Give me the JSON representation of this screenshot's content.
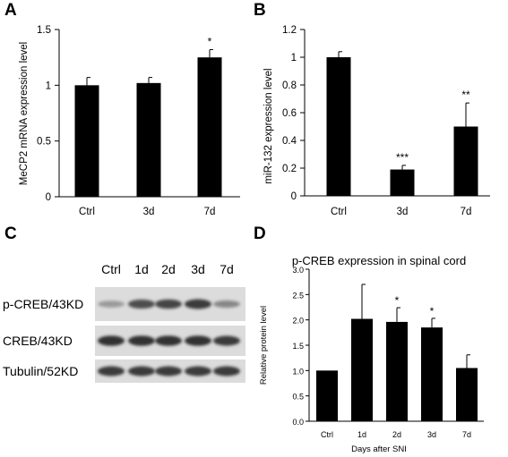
{
  "chart_data": [
    {
      "id": "A",
      "panel_label": "A",
      "type": "bar",
      "title": "",
      "xlabel": "",
      "ylabel": "MeCP2 mRNA expression level",
      "categories": [
        "Ctrl",
        "3d",
        "7d"
      ],
      "values": [
        1.0,
        1.02,
        1.25
      ],
      "errors": [
        0.07,
        0.05,
        0.07
      ],
      "significance": [
        "",
        "",
        "*"
      ],
      "ylim": [
        0,
        1.5
      ],
      "yticks": [
        0,
        0.5,
        1,
        1.5
      ],
      "ytick_labels": [
        "0",
        "0.5",
        "1",
        "1.5"
      ],
      "grid": false,
      "legend": "none",
      "bar_color": "#000000"
    },
    {
      "id": "B",
      "panel_label": "B",
      "type": "bar",
      "title": "",
      "xlabel": "",
      "ylabel": "miR-132 expression level",
      "categories": [
        "Ctrl",
        "3d",
        "7d"
      ],
      "values": [
        1.0,
        0.19,
        0.5
      ],
      "errors": [
        0.04,
        0.03,
        0.17
      ],
      "significance": [
        "",
        "***",
        "**"
      ],
      "ylim": [
        0,
        1.2
      ],
      "yticks": [
        0,
        0.2,
        0.4,
        0.6,
        0.8,
        1,
        1.2
      ],
      "ytick_labels": [
        "0",
        "0.2",
        "0.4",
        "0.6",
        "0.8",
        "1",
        "1.2"
      ],
      "grid": false,
      "legend": "none",
      "bar_color": "#000000"
    },
    {
      "id": "D",
      "panel_label": "D",
      "type": "bar",
      "title": "p-CREB expression in spinal cord",
      "xlabel": "Days after SNI",
      "ylabel": "Relative protein level",
      "categories": [
        "Ctrl",
        "1d",
        "2d",
        "3d",
        "7d"
      ],
      "values": [
        1.0,
        2.02,
        1.96,
        1.85,
        1.05
      ],
      "errors": [
        0.0,
        0.68,
        0.28,
        0.18,
        0.26
      ],
      "significance": [
        "",
        "",
        "*",
        "*",
        ""
      ],
      "ylim": [
        0,
        3.0
      ],
      "yticks": [
        0,
        0.5,
        1.0,
        1.5,
        2.0,
        2.5,
        3.0
      ],
      "ytick_labels": [
        "0.0",
        "0.5",
        "1.0",
        "1.5",
        "2.0",
        "2.5",
        "3.0"
      ],
      "grid": false,
      "legend": "none",
      "bar_color": "#000000"
    }
  ],
  "blot": {
    "panel_label": "C",
    "lanes": [
      "Ctrl",
      "1d",
      "2d",
      "3d",
      "7d"
    ],
    "rows": [
      {
        "label": "p-CREB/43KD",
        "intensities": [
          0.35,
          0.75,
          0.8,
          0.85,
          0.45
        ]
      },
      {
        "label": "CREB/43KD",
        "intensities": [
          0.9,
          0.9,
          0.9,
          0.9,
          0.85
        ]
      },
      {
        "label": "Tubulin/52KD",
        "intensities": [
          0.85,
          0.85,
          0.85,
          0.85,
          0.85
        ]
      }
    ]
  }
}
